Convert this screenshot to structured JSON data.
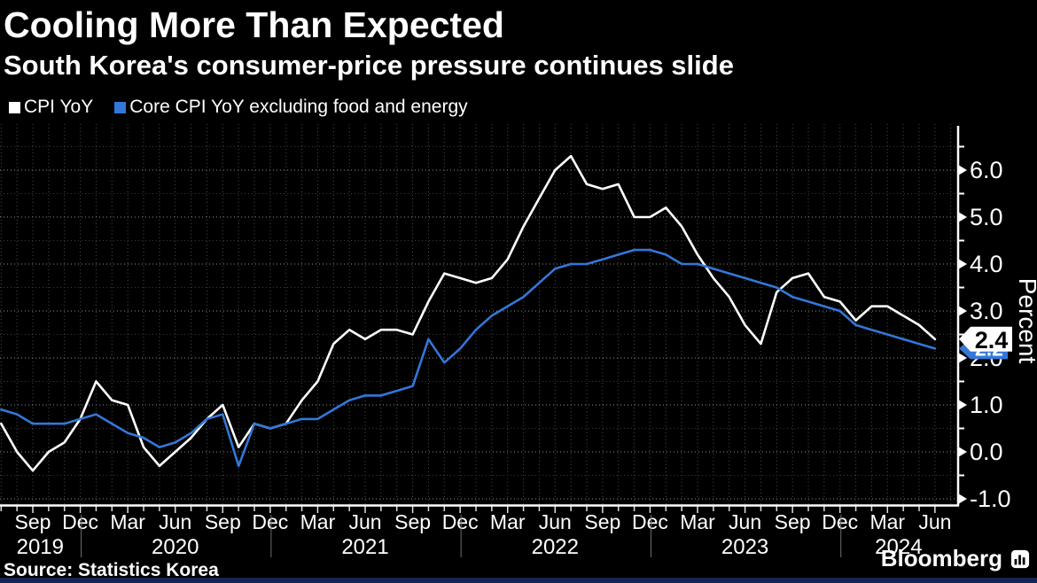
{
  "page": {
    "background": "#000000",
    "bottom_bar_color": "#162552"
  },
  "header": {
    "title": "Cooling More Than Expected",
    "subtitle": "South Korea's consumer-price pressure continues slide"
  },
  "legend": {
    "items": [
      {
        "label": "CPI YoY",
        "color": "#ffffff"
      },
      {
        "label": "Core CPI YoY excluding food and energy",
        "color": "#3377d8"
      }
    ]
  },
  "footer": {
    "source": "Source: Statistics Korea",
    "brand": "Bloomberg"
  },
  "chart_data": {
    "type": "line",
    "title": "Cooling More Than Expected",
    "subtitle": "South Korea's consumer-price pressure continues slide",
    "ylabel": "Percent",
    "xlabel": "",
    "ylim": [
      -1.1,
      7.0
    ],
    "y_major_ticks": [
      6.0,
      5.0,
      4.0,
      3.0,
      2.0,
      1.0,
      0.0,
      -1.0
    ],
    "y_minor_step": 0.5,
    "grid": "dotted",
    "legend_position": "top-left",
    "x_tick_label_pattern": [
      "Sep",
      "Dec",
      "Mar",
      "Jun"
    ],
    "x_year_labels": [
      "2019",
      "2020",
      "2021",
      "2022",
      "2023",
      "2024"
    ],
    "x_months": [
      "2019-07",
      "2019-08",
      "2019-09",
      "2019-10",
      "2019-11",
      "2019-12",
      "2020-01",
      "2020-02",
      "2020-03",
      "2020-04",
      "2020-05",
      "2020-06",
      "2020-07",
      "2020-08",
      "2020-09",
      "2020-10",
      "2020-11",
      "2020-12",
      "2021-01",
      "2021-02",
      "2021-03",
      "2021-04",
      "2021-05",
      "2021-06",
      "2021-07",
      "2021-08",
      "2021-09",
      "2021-10",
      "2021-11",
      "2021-12",
      "2022-01",
      "2022-02",
      "2022-03",
      "2022-04",
      "2022-05",
      "2022-06",
      "2022-07",
      "2022-08",
      "2022-09",
      "2022-10",
      "2022-11",
      "2022-12",
      "2023-01",
      "2023-02",
      "2023-03",
      "2023-04",
      "2023-05",
      "2023-06",
      "2023-07",
      "2023-08",
      "2023-09",
      "2023-10",
      "2023-11",
      "2023-12",
      "2024-01",
      "2024-02",
      "2024-03",
      "2024-04",
      "2024-05",
      "2024-06"
    ],
    "series": [
      {
        "name": "CPI YoY",
        "color": "#ffffff",
        "values": [
          0.6,
          0.0,
          -0.4,
          0.0,
          0.2,
          0.7,
          1.5,
          1.1,
          1.0,
          0.1,
          -0.3,
          0.0,
          0.3,
          0.7,
          1.0,
          0.1,
          0.6,
          0.5,
          0.6,
          1.1,
          1.5,
          2.3,
          2.6,
          2.4,
          2.6,
          2.6,
          2.5,
          3.2,
          3.8,
          3.7,
          3.6,
          3.7,
          4.1,
          4.8,
          5.4,
          6.0,
          6.3,
          5.7,
          5.6,
          5.7,
          5.0,
          5.0,
          5.2,
          4.8,
          4.2,
          3.7,
          3.3,
          2.7,
          2.3,
          3.4,
          3.7,
          3.8,
          3.3,
          3.2,
          2.8,
          3.1,
          3.1,
          2.9,
          2.7,
          2.4
        ]
      },
      {
        "name": "Core CPI YoY excluding food and energy",
        "color": "#3377d8",
        "values": [
          0.9,
          0.8,
          0.6,
          0.6,
          0.6,
          0.7,
          0.8,
          0.6,
          0.4,
          0.3,
          0.1,
          0.2,
          0.4,
          0.7,
          0.8,
          -0.3,
          0.6,
          0.5,
          0.6,
          0.7,
          0.7,
          0.9,
          1.1,
          1.2,
          1.2,
          1.3,
          1.4,
          2.4,
          1.9,
          2.2,
          2.6,
          2.9,
          3.1,
          3.3,
          3.6,
          3.9,
          4.0,
          4.0,
          4.1,
          4.2,
          4.3,
          4.3,
          4.2,
          4.0,
          4.0,
          3.9,
          3.8,
          3.7,
          3.6,
          3.5,
          3.3,
          3.2,
          3.1,
          3.0,
          2.7,
          2.6,
          2.5,
          2.4,
          2.3,
          2.2
        ]
      }
    ],
    "end_value_badges": [
      {
        "series": "CPI YoY",
        "label": "2.4",
        "value": 2.4,
        "bg": "#ffffff",
        "fg": "#000000"
      },
      {
        "series": "Core CPI YoY excluding food and energy",
        "label": "2.2",
        "value": 2.2,
        "bg": "#3377d8",
        "fg": "#ffffff"
      }
    ]
  }
}
